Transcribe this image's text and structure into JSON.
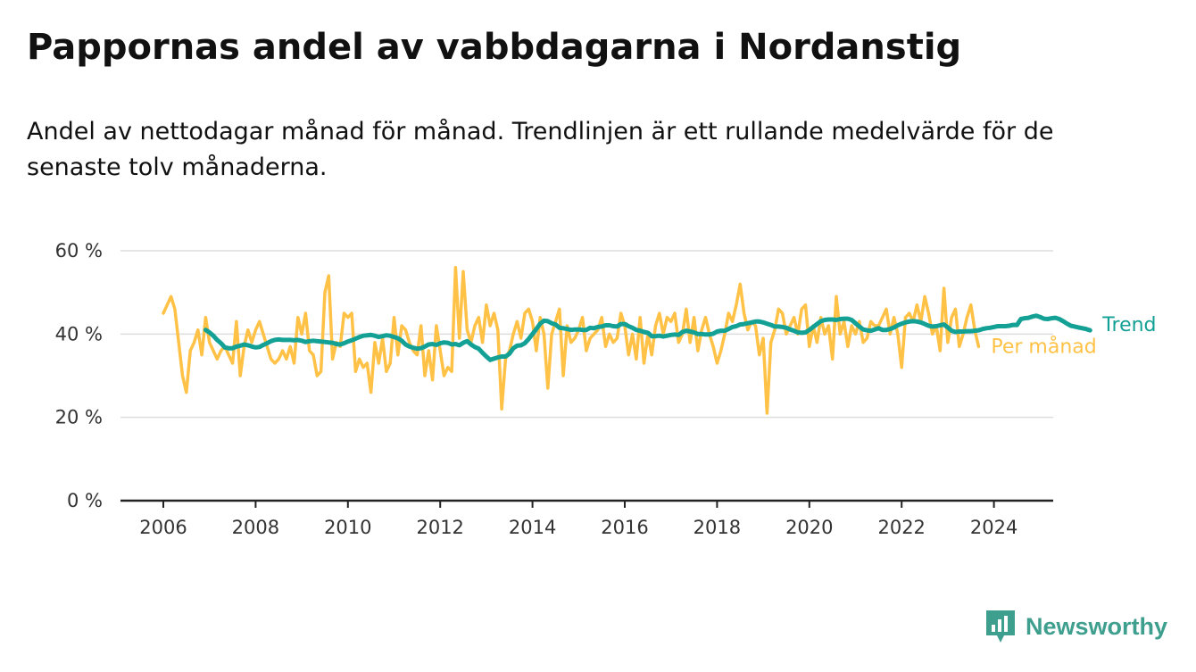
{
  "title": "Pappornas andel av vabbdagarna i Nordanstig",
  "subtitle": "Andel av nettodagar månad för månad. Trendlinjen är ett rullande medelvärde för de senaste tolv månaderna.",
  "brand": "Newsworthy",
  "colors": {
    "trend": "#13a095",
    "monthly": "#ffc247",
    "brand": "#3f9f8e",
    "grid": "#dddddd",
    "axis": "#222222"
  },
  "chart_data": {
    "type": "line",
    "x_ticks": [
      2006,
      2008,
      2010,
      2012,
      2014,
      2016,
      2018,
      2020,
      2022,
      2024
    ],
    "x_tick_labels": [
      "2006",
      "2008",
      "2010",
      "2012",
      "2014",
      "2016",
      "2018",
      "2020",
      "2022",
      "2024"
    ],
    "y_ticks": [
      0,
      20,
      40,
      60
    ],
    "y_tick_labels": [
      "0 %",
      "20 %",
      "40 %",
      "60 %"
    ],
    "xlim": [
      2005.1,
      2025.3
    ],
    "ylim": [
      0,
      60
    ],
    "x_axis": "year, monthly points",
    "grid": "horizontal",
    "legend": "inline labels at end of lines",
    "series": [
      {
        "name": "Per månad",
        "color": "#ffc247",
        "x_start": "2006-01",
        "values": [
          45,
          47,
          49,
          46,
          38,
          30,
          26,
          36,
          38,
          41,
          35,
          44,
          38,
          36,
          34,
          36,
          37,
          35,
          33,
          43,
          30,
          37,
          41,
          38,
          41,
          43,
          40,
          37,
          34,
          33,
          34,
          36,
          34,
          37,
          33,
          44,
          40,
          45,
          36,
          35,
          30,
          31,
          50,
          54,
          34,
          38,
          37,
          45,
          44,
          45,
          31,
          34,
          32,
          33,
          26,
          38,
          33,
          39,
          31,
          33,
          44,
          35,
          42,
          41,
          38,
          36,
          35,
          42,
          30,
          36,
          29,
          42,
          36,
          30,
          32,
          31,
          56,
          39,
          55,
          41,
          38,
          42,
          44,
          38,
          47,
          42,
          45,
          41,
          22,
          34,
          36,
          40,
          43,
          39,
          45,
          46,
          43,
          36,
          44,
          40,
          27,
          40,
          43,
          46,
          30,
          42,
          38,
          39,
          41,
          44,
          36,
          39,
          40,
          41,
          44,
          37,
          40,
          38,
          39,
          45,
          42,
          35,
          40,
          34,
          44,
          33,
          40,
          35,
          42,
          45,
          40,
          44,
          43,
          45,
          38,
          40,
          46,
          38,
          44,
          36,
          41,
          44,
          40,
          37,
          33,
          36,
          40,
          45,
          43,
          47,
          52,
          45,
          41,
          43,
          42,
          35,
          39,
          21,
          38,
          41,
          46,
          45,
          40,
          42,
          44,
          40,
          46,
          47,
          37,
          42,
          38,
          44,
          40,
          42,
          34,
          49,
          40,
          43,
          37,
          42,
          40,
          43,
          38,
          39,
          43,
          42,
          42,
          44,
          46,
          40,
          44,
          40,
          32,
          44,
          45,
          43,
          47,
          43,
          49,
          45,
          40,
          42,
          36,
          51,
          38,
          44,
          46,
          37,
          40,
          44,
          47,
          41,
          37
        ],
        "last_value": 37
      },
      {
        "name": "Trend",
        "color": "#13a095",
        "x_start": "2006-12",
        "values": [
          41.0,
          40.4,
          39.6,
          38.6,
          37.8,
          36.8,
          36.6,
          36.6,
          37.0,
          37.2,
          37.5,
          37.3,
          37.0,
          36.8,
          36.9,
          37.4,
          37.8,
          38.3,
          38.6,
          38.7,
          38.6,
          38.6,
          38.6,
          38.5,
          38.6,
          38.4,
          38.1,
          38.3,
          38.4,
          38.3,
          38.2,
          38.1,
          38.0,
          37.9,
          37.6,
          37.5,
          37.8,
          38.2,
          38.5,
          38.9,
          39.3,
          39.6,
          39.7,
          39.8,
          39.6,
          39.3,
          39.5,
          39.7,
          39.6,
          39.3,
          39.0,
          38.4,
          37.5,
          37.0,
          36.7,
          36.5,
          36.6,
          37.0,
          37.5,
          37.6,
          37.4,
          37.8,
          38.0,
          37.9,
          37.5,
          37.6,
          37.3,
          37.9,
          38.3,
          37.5,
          36.9,
          36.5,
          35.5,
          34.6,
          33.8,
          34.1,
          34.4,
          34.6,
          34.6,
          35.3,
          36.6,
          37.2,
          37.3,
          37.8,
          38.8,
          40.0,
          41.2,
          42.5,
          43.2,
          43.1,
          42.6,
          42.3,
          41.5,
          41.4,
          41.2,
          41.0,
          41.1,
          41.1,
          41.0,
          41.0,
          41.5,
          41.4,
          41.7,
          41.8,
          42.1,
          42.1,
          41.9,
          41.8,
          42.4,
          42.4,
          41.9,
          41.5,
          41.0,
          40.8,
          40.5,
          40.3,
          39.5,
          39.5,
          39.6,
          39.4,
          39.6,
          39.8,
          39.9,
          39.8,
          40.5,
          40.8,
          40.6,
          40.4,
          40.0,
          40.0,
          39.9,
          39.9,
          40.1,
          40.6,
          40.8,
          40.8,
          41.2,
          41.7,
          41.9,
          42.3,
          42.4,
          42.6,
          42.8,
          43.0,
          43.0,
          42.8,
          42.5,
          42.2,
          41.8,
          41.8,
          41.7,
          41.5,
          41.1,
          40.8,
          40.4,
          40.3,
          40.4,
          41.0,
          41.7,
          42.4,
          43.1,
          43.4,
          43.5,
          43.5,
          43.4,
          43.6,
          43.7,
          43.7,
          43.4,
          42.6,
          41.8,
          41.1,
          40.9,
          40.8,
          41.1,
          41.4,
          41.0,
          41.0,
          41.2,
          41.6,
          42.1,
          42.5,
          42.8,
          43.0,
          43.1,
          43.0,
          42.8,
          42.4,
          42.0,
          41.8,
          41.9,
          42.1,
          42.3,
          41.6,
          40.8,
          40.5,
          40.6,
          40.6,
          40.7,
          40.7,
          40.8,
          40.9,
          41.2,
          41.4,
          41.5,
          41.7,
          41.9,
          41.9,
          41.9,
          42.0,
          42.2,
          42.2,
          43.6,
          43.8,
          43.9,
          44.2,
          44.4,
          44.1,
          43.7,
          43.6,
          43.8,
          43.9,
          43.6,
          43.1,
          42.5,
          42.0,
          41.8,
          41.6,
          41.4,
          41.2,
          40.9
        ],
        "last_value": 40.9
      }
    ]
  }
}
